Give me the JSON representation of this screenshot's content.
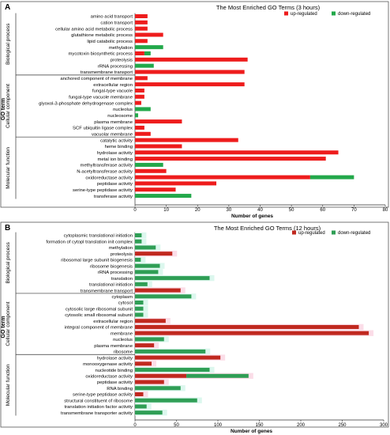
{
  "chart_data": [
    {
      "panel_label": "A",
      "type": "bar",
      "orientation": "horizontal",
      "stacked": true,
      "title": "The Most Enriched GO Terms (3 hours)",
      "xlabel": "Number of genes",
      "ylabel": "GO term",
      "xlim": [
        0,
        80
      ],
      "xticks": [
        "0",
        "10",
        "20",
        "30",
        "40",
        "50",
        "60",
        "70",
        "80"
      ],
      "legend": {
        "position": "top-right",
        "entries": [
          "up-regulated",
          "down-regulated"
        ]
      },
      "colors": {
        "up": "#ee1c1c",
        "down": "#22a84a"
      },
      "groups": [
        {
          "name": "Biological process",
          "categories": [
            "amino acid transport",
            "cation transport",
            "cellular amino acid metabolic process",
            "glutathione metabolic process",
            "lipid catabolic process",
            "methylation",
            "mycotoxin biosynthetic process",
            "proteolysis",
            "rRNA processing",
            "transmembrane transport"
          ]
        },
        {
          "name": "Cellular component",
          "categories": [
            "anchored component of membrane",
            "extracellular region",
            "fungal-type vacuole",
            "fungal-type vacuole membrane",
            "glyoxol-3-phosphate dehydrogenase complex",
            "nucleolus",
            "nucleosome",
            "plasma membrane",
            "SCF ubiquitin ligase complex",
            "vacuolar membrane"
          ]
        },
        {
          "name": "Molecular function",
          "categories": [
            "catalytic activity",
            "heme binding",
            "hydrolase activity",
            "metal ion binding",
            "methyltransferase activity",
            "N-acetyltransferase activity",
            "oxidoreductase activity",
            "peptidase activity",
            "serine-type peptidase activity",
            "transferase activity"
          ]
        }
      ],
      "series": [
        {
          "name": "up-regulated",
          "values": [
            4,
            4,
            4,
            9,
            4,
            0,
            3,
            36,
            0,
            35,
            4,
            35,
            3,
            3,
            2,
            0,
            0,
            15,
            3,
            5,
            33,
            15,
            65,
            61,
            0,
            10,
            56,
            26,
            13,
            0
          ]
        },
        {
          "name": "down-regulated",
          "values": [
            0,
            0,
            0,
            0,
            0,
            9,
            2,
            0,
            6,
            0,
            0,
            0,
            0,
            0,
            0,
            5,
            1,
            0,
            0,
            0,
            0,
            0,
            0,
            0,
            9,
            0,
            14,
            0,
            0,
            18
          ]
        }
      ]
    },
    {
      "panel_label": "B",
      "type": "bar",
      "orientation": "horizontal",
      "stacked": true,
      "title": "The Most Enriched GO Terms (12 hours)",
      "xlabel": "Number of genes",
      "ylabel": "GO term",
      "xlim": [
        0,
        300
      ],
      "xticks": [
        "0",
        "50",
        "100",
        "150",
        "200",
        "250",
        "300"
      ],
      "legend": {
        "position": "top-right",
        "entries": [
          "up-regulated",
          "down-regulated"
        ]
      },
      "colors": {
        "up": "#c0281f",
        "down": "#2f9e55"
      },
      "groups": [
        {
          "name": "Biological process",
          "categories": [
            "cytoplasmic translational initiation",
            "formation of cytopl translation init complex",
            "methylation",
            "proteolysis",
            "ribosomal large subunit biogenesis",
            "ribosome biogenesis",
            "rRNA processing",
            "translation",
            "translational initiation",
            "transmembrane transport"
          ]
        },
        {
          "name": "Cellular component",
          "categories": [
            "cytoplasm",
            "cytosol",
            "cytosolic large ribosomal subunit",
            "cytosolic small ribosomal subunit",
            "extracellular region",
            "integral component of membrane",
            "membrane",
            "nucleolus",
            "plasma membrane",
            "ribosome"
          ]
        },
        {
          "name": "Molecular function",
          "categories": [
            "hydrolase activity",
            "monooxygenase activity",
            "nucleotide binding",
            "oxidoreductase activity",
            "peptidase activity",
            "RNA binding",
            "serine-type peptidase activity",
            "structural constituent of ribosome",
            "translation initiation factor activity",
            "transmembrane transporter activity"
          ]
        }
      ],
      "series": [
        {
          "name": "up-regulated",
          "values": [
            0,
            0,
            0,
            45,
            0,
            0,
            0,
            0,
            0,
            55,
            0,
            0,
            0,
            0,
            37,
            270,
            282,
            0,
            23,
            0,
            103,
            20,
            0,
            62,
            35,
            0,
            10,
            0,
            0,
            0
          ]
        },
        {
          "name": "down-regulated",
          "values": [
            8,
            8,
            25,
            0,
            7,
            30,
            28,
            90,
            15,
            0,
            68,
            10,
            10,
            10,
            0,
            0,
            0,
            35,
            0,
            85,
            0,
            0,
            90,
            75,
            0,
            55,
            0,
            75,
            14,
            33
          ]
        }
      ]
    }
  ]
}
